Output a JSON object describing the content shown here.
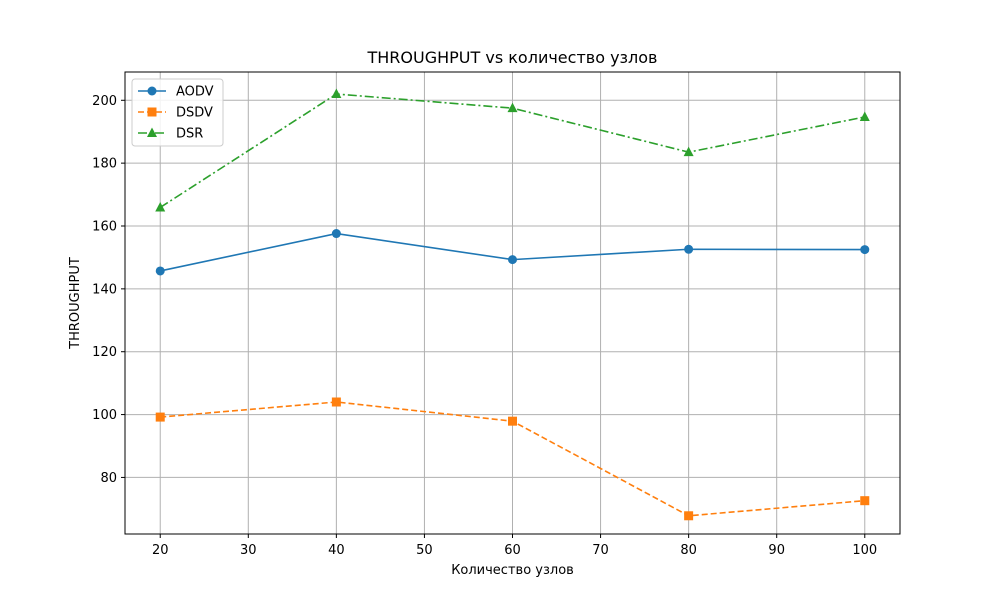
{
  "chart_data": {
    "type": "line",
    "title": "THROUGHPUT vs количество узлов",
    "xlabel": "Количество узлов",
    "ylabel": "THROUGHPUT",
    "x": [
      20,
      40,
      60,
      80,
      100
    ],
    "xlim": [
      16,
      104
    ],
    "ylim": [
      62,
      209
    ],
    "xticks": [
      20,
      30,
      40,
      50,
      60,
      70,
      80,
      90,
      100
    ],
    "yticks": [
      80,
      100,
      120,
      140,
      160,
      180,
      200
    ],
    "grid": true,
    "legend_position": "top-left",
    "series": [
      {
        "name": "AODV",
        "values": [
          145.7,
          157.6,
          149.3,
          152.6,
          152.5
        ],
        "color": "#1f77b4",
        "marker": "circle",
        "line_style": "solid"
      },
      {
        "name": "DSDV",
        "values": [
          99.2,
          104.0,
          97.9,
          67.8,
          72.6
        ],
        "color": "#ff7f0e",
        "marker": "square",
        "line_style": "dashed"
      },
      {
        "name": "DSR",
        "values": [
          165.9,
          202.0,
          197.5,
          183.5,
          194.7
        ],
        "color": "#2ca02c",
        "marker": "triangle",
        "line_style": "dashdot"
      }
    ]
  }
}
